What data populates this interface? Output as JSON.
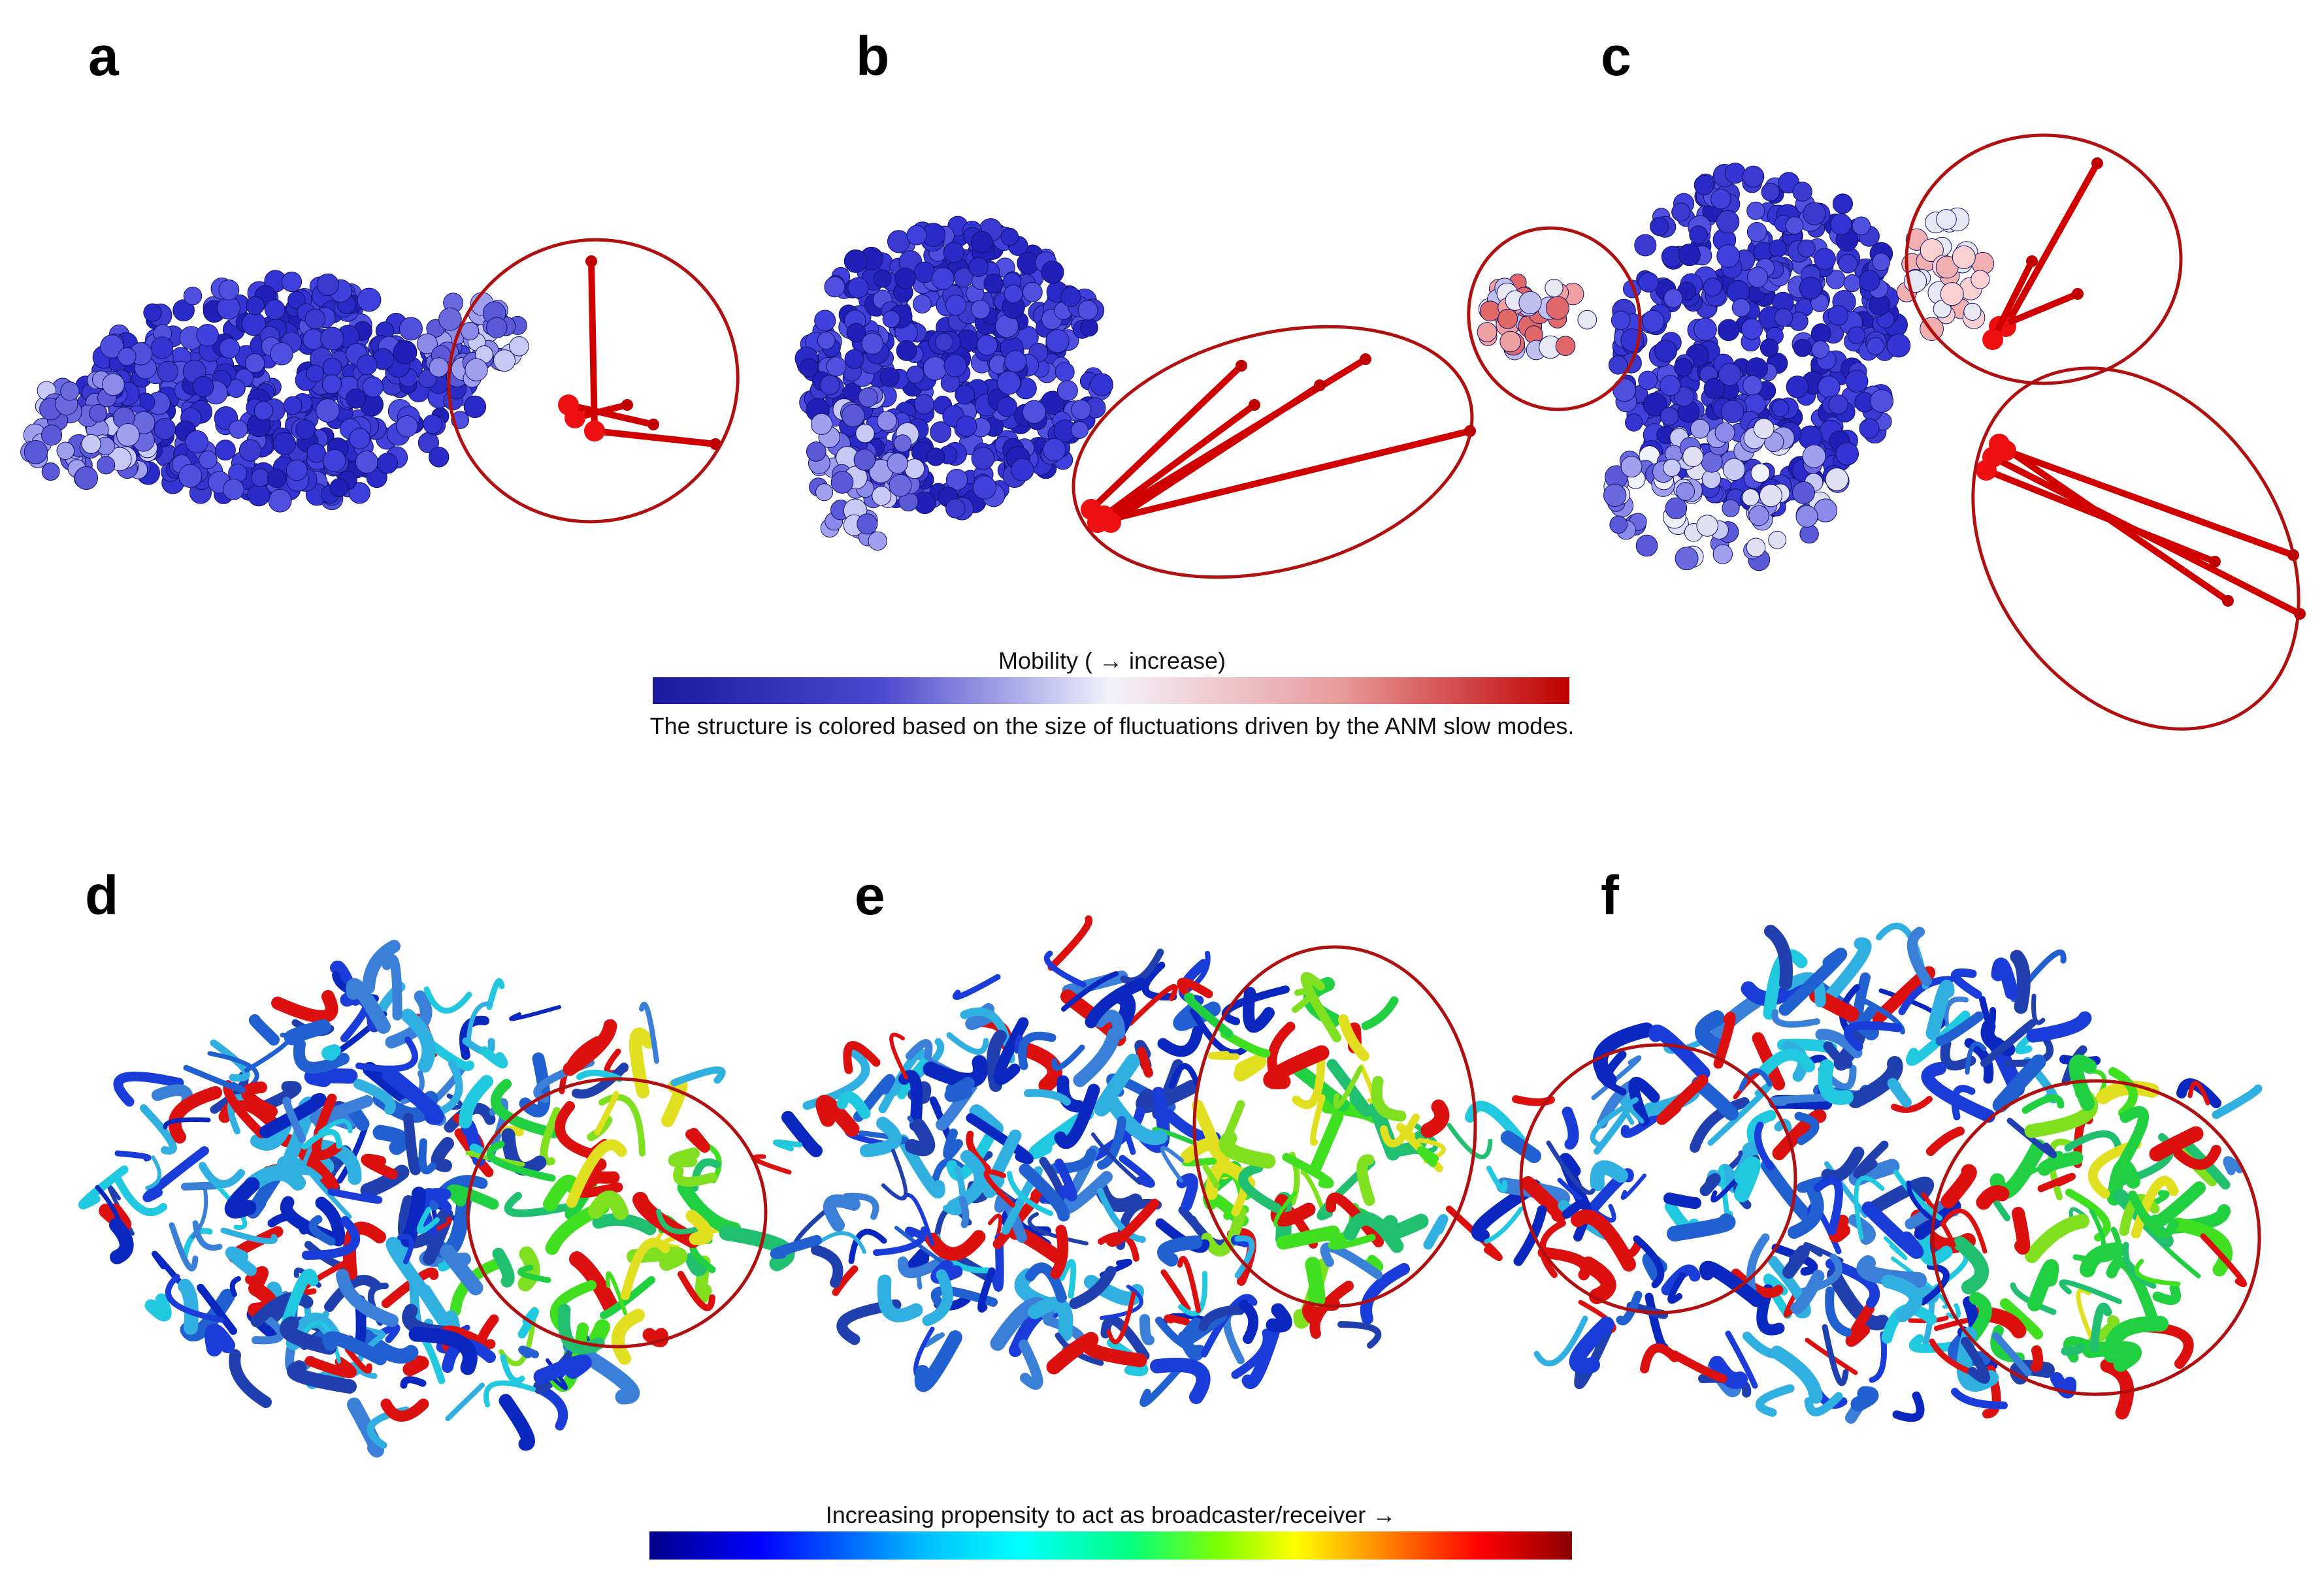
{
  "panel_labels": [
    "a",
    "b",
    "c",
    "d",
    "e",
    "f"
  ],
  "mobility_scale": {
    "title": "Mobility ( → increase)",
    "caption": "The structure is colored based on the size of fluctuations driven by the ANM slow modes."
  },
  "propensity_scale": {
    "title": "Increasing propensity to act as broadcaster/receiver →"
  }
}
